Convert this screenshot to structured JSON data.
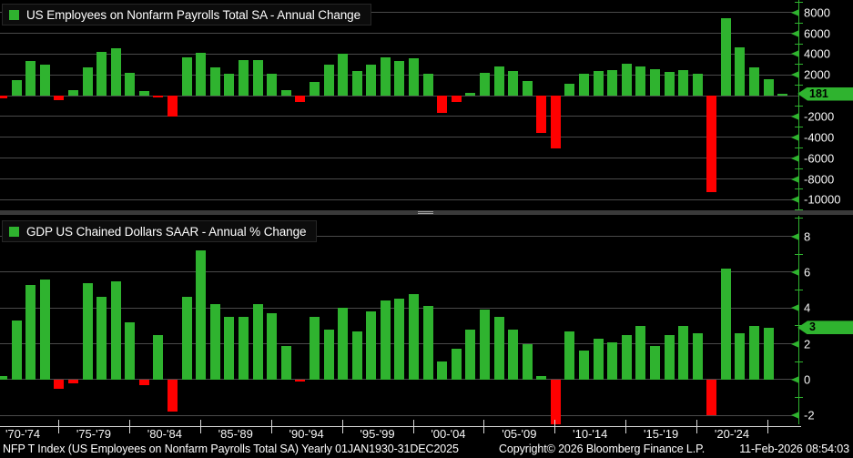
{
  "colors": {
    "background": "#000000",
    "positive_bar": "#2fb32f",
    "negative_bar": "#ff0000",
    "gridline": "#4a4a4a",
    "axis_green": "#2fb32f",
    "tag_bg": "#2fb32f",
    "tag_text": "#000000",
    "text": "#ffffff"
  },
  "chart_data": [
    {
      "type": "bar",
      "title": "US Employees on Nonfarm Payrolls Total SA - Annual Change",
      "x_start": 1970,
      "values": [
        -250,
        1500,
        3350,
        3000,
        -400,
        500,
        2700,
        4250,
        4550,
        2200,
        450,
        -200,
        -2050,
        3650,
        4100,
        2700,
        2150,
        3400,
        3450,
        2100,
        500,
        -600,
        1300,
        3000,
        4000,
        2400,
        3000,
        3650,
        3300,
        3600,
        2150,
        -1650,
        -600,
        300,
        2200,
        2800,
        2350,
        1400,
        -3550,
        -5050,
        1150,
        2150,
        2400,
        2500,
        3100,
        2850,
        2550,
        2300,
        2500,
        2150,
        -9300,
        7450,
        4650,
        2700,
        1550,
        181
      ],
      "yticks": [
        8000,
        6000,
        4000,
        2000,
        -2000,
        -4000,
        -6000,
        -8000,
        -10000
      ],
      "ylim": [
        -11200,
        9200
      ],
      "grid_zero": true,
      "last_value": 181,
      "last_label": "181"
    },
    {
      "type": "bar",
      "title": "GDP US Chained Dollars SAAR - Annual % Change",
      "x_start": 1970,
      "values": [
        0.2,
        3.3,
        5.3,
        5.6,
        -0.5,
        -0.2,
        5.4,
        4.6,
        5.5,
        3.2,
        -0.3,
        2.5,
        -1.8,
        4.6,
        7.2,
        4.2,
        3.5,
        3.5,
        4.2,
        3.7,
        1.9,
        -0.1,
        3.5,
        2.8,
        4.0,
        2.7,
        3.8,
        4.4,
        4.5,
        4.8,
        4.1,
        1.0,
        1.7,
        2.8,
        3.9,
        3.5,
        2.8,
        2.0,
        0.2,
        -2.6,
        2.7,
        1.6,
        2.3,
        2.1,
        2.5,
        3.0,
        1.9,
        2.5,
        3.0,
        2.6,
        -2.0,
        6.2,
        2.6,
        3.0,
        2.9
      ],
      "yticks": [
        8,
        6,
        4,
        2,
        0,
        -2
      ],
      "ylim": [
        -2.5,
        9.15
      ],
      "grid_zero": true,
      "last_value": 2.9,
      "last_label": "3"
    }
  ],
  "xaxis": {
    "labels": [
      "'70-'74",
      "'75-'79",
      "'80-'84",
      "'85-'89",
      "'90-'94",
      "'95-'99",
      "'00-'04",
      "'05-'09",
      "'10-'14",
      "'15-'19",
      "'20-'24"
    ]
  },
  "footer": {
    "left": "NFP T Index (US Employees on Nonfarm Payrolls Total SA) Yearly 01JAN1930-31DEC2025",
    "copyright": "Copyright© 2026 Bloomberg Finance L.P.",
    "timestamp": "11-Feb-2026 08:54:03"
  }
}
